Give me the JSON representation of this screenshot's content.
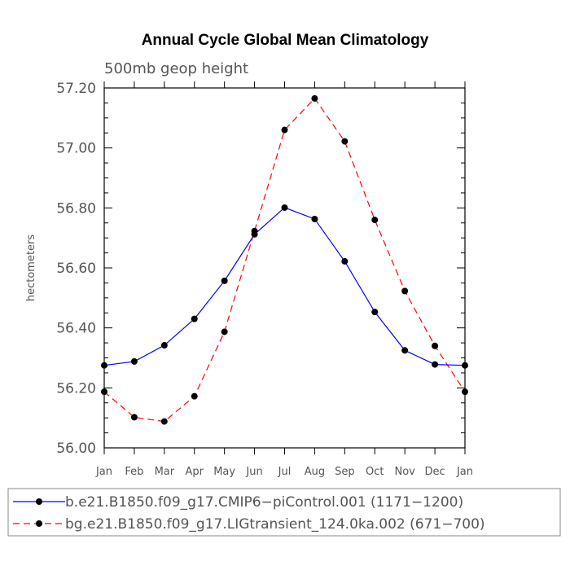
{
  "chart_data": {
    "type": "line",
    "title": "Annual Cycle Global Mean Climatology",
    "subtitle": "500mb geop height",
    "xlabel": "",
    "ylabel": "hectometers",
    "categories": [
      "Jan",
      "Feb",
      "Mar",
      "Apr",
      "May",
      "Jun",
      "Jul",
      "Aug",
      "Sep",
      "Oct",
      "Nov",
      "Dec",
      "Jan"
    ],
    "ylim": [
      56.0,
      57.2
    ],
    "yticks": [
      "56.00",
      "56.20",
      "56.40",
      "56.60",
      "56.80",
      "57.00",
      "57.20"
    ],
    "grid": false,
    "legend_position": "bottom",
    "series": [
      {
        "name": "b.e21.B1850.f09_g17.CMIP6−piControl.001 (1171−1200)",
        "color": "#0000ff",
        "line_style": "solid",
        "marker": "filled-circle",
        "values": [
          56.275,
          56.288,
          56.342,
          56.43,
          56.557,
          56.712,
          56.801,
          56.763,
          56.622,
          56.453,
          56.325,
          56.278,
          56.275
        ]
      },
      {
        "name": "bg.e21.B1850.f09_g17.LIGtransient_124.0ka.002 (671−700)",
        "color": "#ff0000",
        "line_style": "dashed",
        "marker": "filled-circle",
        "values": [
          56.187,
          56.102,
          56.088,
          56.172,
          56.387,
          56.723,
          57.06,
          57.165,
          57.022,
          56.76,
          56.523,
          56.34,
          56.187
        ]
      }
    ]
  }
}
